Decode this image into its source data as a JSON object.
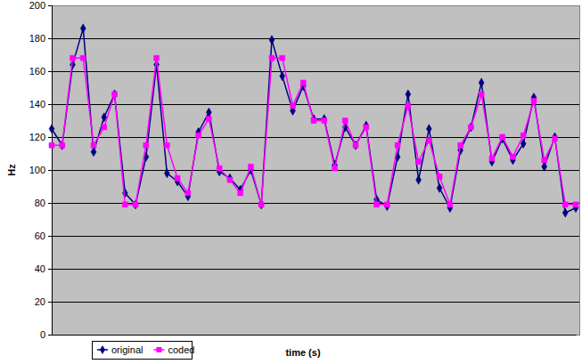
{
  "chart_data": {
    "type": "line",
    "x_label": "time (s)",
    "y_label": "Hz",
    "categories": [
      null,
      null,
      null,
      null,
      null,
      null,
      null,
      null,
      null,
      null,
      null,
      null,
      null,
      null,
      null,
      null,
      null,
      null,
      null,
      null,
      null,
      null,
      null,
      null,
      null,
      null,
      null,
      null,
      null,
      null,
      null,
      null,
      null,
      null,
      null,
      null,
      null,
      null,
      null,
      null,
      null,
      null,
      null,
      null,
      null,
      null,
      null,
      null,
      null,
      null,
      null
    ],
    "series": [
      {
        "name": "original",
        "color": "#000080",
        "marker": "diamond",
        "line_style": "solid",
        "values": [
          125,
          115,
          164,
          186,
          111,
          132,
          146,
          86,
          79,
          108,
          164,
          98,
          93,
          84,
          123,
          135,
          99,
          95,
          88,
          100,
          79,
          179,
          157,
          136,
          151,
          131,
          131,
          103,
          126,
          115,
          127,
          82,
          78,
          108,
          146,
          94,
          125,
          89,
          77,
          112,
          126,
          153,
          105,
          119,
          106,
          116,
          144,
          102,
          120,
          74,
          77
        ]
      },
      {
        "name": "coded",
        "color": "#ff00ff",
        "marker": "square",
        "line_style": "solid",
        "values": [
          115,
          115,
          168,
          168,
          115,
          126,
          146,
          79,
          79,
          115,
          168,
          115,
          95,
          86,
          121,
          131,
          101,
          94,
          86,
          102,
          79,
          168,
          168,
          139,
          153,
          130,
          130,
          101,
          130,
          115,
          126,
          79,
          79,
          115,
          139,
          105,
          118,
          96,
          79,
          115,
          126,
          146,
          107,
          120,
          108,
          121,
          142,
          106,
          119,
          79,
          79
        ]
      }
    ],
    "ylim": [
      0,
      200
    ],
    "yticks": [
      0,
      20,
      40,
      60,
      80,
      100,
      120,
      140,
      160,
      180,
      200
    ],
    "grid": true,
    "legend": "bottom",
    "tick_labels": "y"
  }
}
